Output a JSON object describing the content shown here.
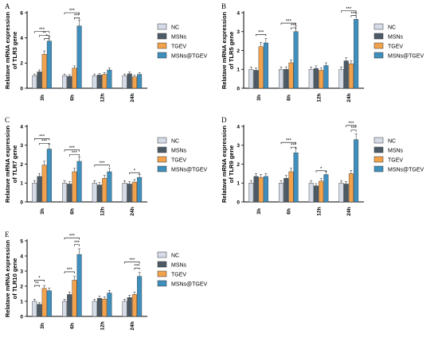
{
  "series_names": [
    "NC",
    "MSNs",
    "TGEV",
    "MSNs@TGEV"
  ],
  "colors": [
    "#d5dbe7",
    "#4c5a66",
    "#f3a24c",
    "#3e8fbd"
  ],
  "chart_data": [
    {
      "type": "bar",
      "panel": "A",
      "ylabel": [
        "Relatave mRNA expression",
        "of TLR3 gene"
      ],
      "categories": [
        "3h",
        "6h",
        "12h",
        "24h"
      ],
      "ylim": [
        0,
        6
      ],
      "yticks": [
        0,
        2,
        4,
        6
      ],
      "series": [
        {
          "name": "NC",
          "values": [
            1.0,
            1.0,
            1.0,
            1.0
          ]
        },
        {
          "name": "MSNs",
          "values": [
            1.3,
            0.95,
            1.05,
            1.15
          ]
        },
        {
          "name": "TGEV",
          "values": [
            2.7,
            1.6,
            1.1,
            0.9
          ]
        },
        {
          "name": "MSNs@TGEV",
          "values": [
            3.75,
            4.95,
            1.45,
            1.1
          ]
        }
      ],
      "sig": [
        {
          "cat": 0,
          "from": 0,
          "to": 3,
          "text": "***",
          "y": 4.5
        },
        {
          "cat": 0,
          "from": 1,
          "to": 3,
          "text": "**",
          "y": 4.2
        },
        {
          "cat": 0,
          "from": 2,
          "to": 3,
          "text": "*",
          "y": 3.95
        },
        {
          "cat": 1,
          "from": 0,
          "to": 3,
          "text": "***",
          "y": 6.0
        },
        {
          "cat": 1,
          "from": 2,
          "to": 3,
          "text": "***",
          "y": 5.6
        }
      ]
    },
    {
      "type": "bar",
      "panel": "B",
      "ylabel": [
        "Relatave mRNA expression",
        "of TLR5 gene"
      ],
      "categories": [
        "3h",
        "6h",
        "12h",
        "24h"
      ],
      "ylim": [
        0,
        4
      ],
      "yticks": [
        0,
        1,
        2,
        3,
        4
      ],
      "series": [
        {
          "name": "NC",
          "values": [
            1.0,
            1.0,
            1.0,
            1.0
          ]
        },
        {
          "name": "MSNs",
          "values": [
            0.95,
            1.0,
            1.05,
            1.45
          ]
        },
        {
          "name": "TGEV",
          "values": [
            2.2,
            1.35,
            0.95,
            1.3
          ]
        },
        {
          "name": "MSNs@TGEV",
          "values": [
            2.4,
            3.0,
            1.2,
            3.65
          ]
        }
      ],
      "sig": [
        {
          "cat": 0,
          "from": 1,
          "to": 3,
          "text": "***",
          "y": 2.85
        },
        {
          "cat": 1,
          "from": 0,
          "to": 3,
          "text": "***",
          "y": 3.45
        },
        {
          "cat": 1,
          "from": 2,
          "to": 3,
          "text": "***",
          "y": 3.2
        },
        {
          "cat": 3,
          "from": 0,
          "to": 3,
          "text": "***",
          "y": 4.1
        },
        {
          "cat": 3,
          "from": 2,
          "to": 3,
          "text": "***",
          "y": 3.85
        }
      ]
    },
    {
      "type": "bar",
      "panel": "C",
      "ylabel": [
        "Relatave mRNA expression",
        "of TLR7 gene"
      ],
      "categories": [
        "3h",
        "6h",
        "12h",
        "24h"
      ],
      "ylim": [
        0,
        4
      ],
      "yticks": [
        0,
        1,
        2,
        3,
        4
      ],
      "series": [
        {
          "name": "NC",
          "values": [
            1.0,
            1.0,
            1.0,
            1.0
          ]
        },
        {
          "name": "MSNs",
          "values": [
            1.35,
            0.95,
            0.9,
            0.95
          ]
        },
        {
          "name": "TGEV",
          "values": [
            1.95,
            1.6,
            1.25,
            1.05
          ]
        },
        {
          "name": "MSNs@TGEV",
          "values": [
            2.8,
            2.15,
            1.6,
            1.3
          ]
        }
      ],
      "sig": [
        {
          "cat": 0,
          "from": 0,
          "to": 3,
          "text": "***",
          "y": 3.35
        },
        {
          "cat": 0,
          "from": 1,
          "to": 3,
          "text": "***",
          "y": 3.1
        },
        {
          "cat": 1,
          "from": 0,
          "to": 3,
          "text": "***",
          "y": 2.75
        },
        {
          "cat": 1,
          "from": 1,
          "to": 3,
          "text": "***",
          "y": 2.5
        },
        {
          "cat": 2,
          "from": 0,
          "to": 3,
          "text": "***",
          "y": 1.95
        },
        {
          "cat": 3,
          "from": 1,
          "to": 3,
          "text": "*",
          "y": 1.55
        }
      ]
    },
    {
      "type": "bar",
      "panel": "D",
      "ylabel": [
        "Relatave mRNA expression",
        "of TLR9 gene"
      ],
      "categories": [
        "3h",
        "6h",
        "12h",
        "24h"
      ],
      "ylim": [
        0,
        4
      ],
      "yticks": [
        0,
        1,
        2,
        3,
        4
      ],
      "series": [
        {
          "name": "NC",
          "values": [
            1.0,
            1.0,
            1.0,
            1.0
          ]
        },
        {
          "name": "MSNs",
          "values": [
            1.35,
            1.25,
            0.85,
            0.95
          ]
        },
        {
          "name": "TGEV",
          "values": [
            1.3,
            1.6,
            1.1,
            1.5
          ]
        },
        {
          "name": "MSNs@TGEV",
          "values": [
            1.35,
            2.6,
            1.45,
            3.3
          ]
        }
      ],
      "sig": [
        {
          "cat": 1,
          "from": 0,
          "to": 3,
          "text": "***",
          "y": 3.15
        },
        {
          "cat": 1,
          "from": 2,
          "to": 3,
          "text": "***",
          "y": 2.9
        },
        {
          "cat": 2,
          "from": 1,
          "to": 3,
          "text": "*",
          "y": 1.65
        },
        {
          "cat": 3,
          "from": 1,
          "to": 3,
          "text": "***",
          "y": 4.05
        },
        {
          "cat": 3,
          "from": 2,
          "to": 3,
          "text": "***",
          "y": 3.8
        }
      ]
    },
    {
      "type": "bar",
      "panel": "E",
      "ylabel": [
        "Relatave mRNA expression",
        "of TLR10 gene"
      ],
      "categories": [
        "3h",
        "6h",
        "12h",
        "24h"
      ],
      "ylim": [
        0,
        5
      ],
      "yticks": [
        0,
        1,
        2,
        3,
        4,
        5
      ],
      "series": [
        {
          "name": "NC",
          "values": [
            1.0,
            1.0,
            1.0,
            1.0
          ]
        },
        {
          "name": "MSNs",
          "values": [
            0.8,
            1.45,
            1.2,
            1.25
          ]
        },
        {
          "name": "TGEV",
          "values": [
            1.85,
            2.4,
            1.15,
            1.45
          ]
        },
        {
          "name": "MSNs@TGEV",
          "values": [
            1.7,
            4.1,
            1.55,
            2.65
          ]
        }
      ],
      "sig": [
        {
          "cat": 0,
          "from": 0,
          "to": 2,
          "text": "*",
          "y": 2.4
        },
        {
          "cat": 0,
          "from": 0,
          "to": 1,
          "text": "**",
          "y": 2.05
        },
        {
          "cat": 1,
          "from": 0,
          "to": 3,
          "text": "***",
          "y": 5.2
        },
        {
          "cat": 1,
          "from": 2,
          "to": 3,
          "text": "***",
          "y": 4.75
        },
        {
          "cat": 1,
          "from": 0,
          "to": 2,
          "text": "***",
          "y": 2.95
        },
        {
          "cat": 3,
          "from": 0,
          "to": 3,
          "text": "***",
          "y": 3.6
        },
        {
          "cat": 3,
          "from": 2,
          "to": 3,
          "text": "***",
          "y": 3.2
        }
      ]
    }
  ]
}
